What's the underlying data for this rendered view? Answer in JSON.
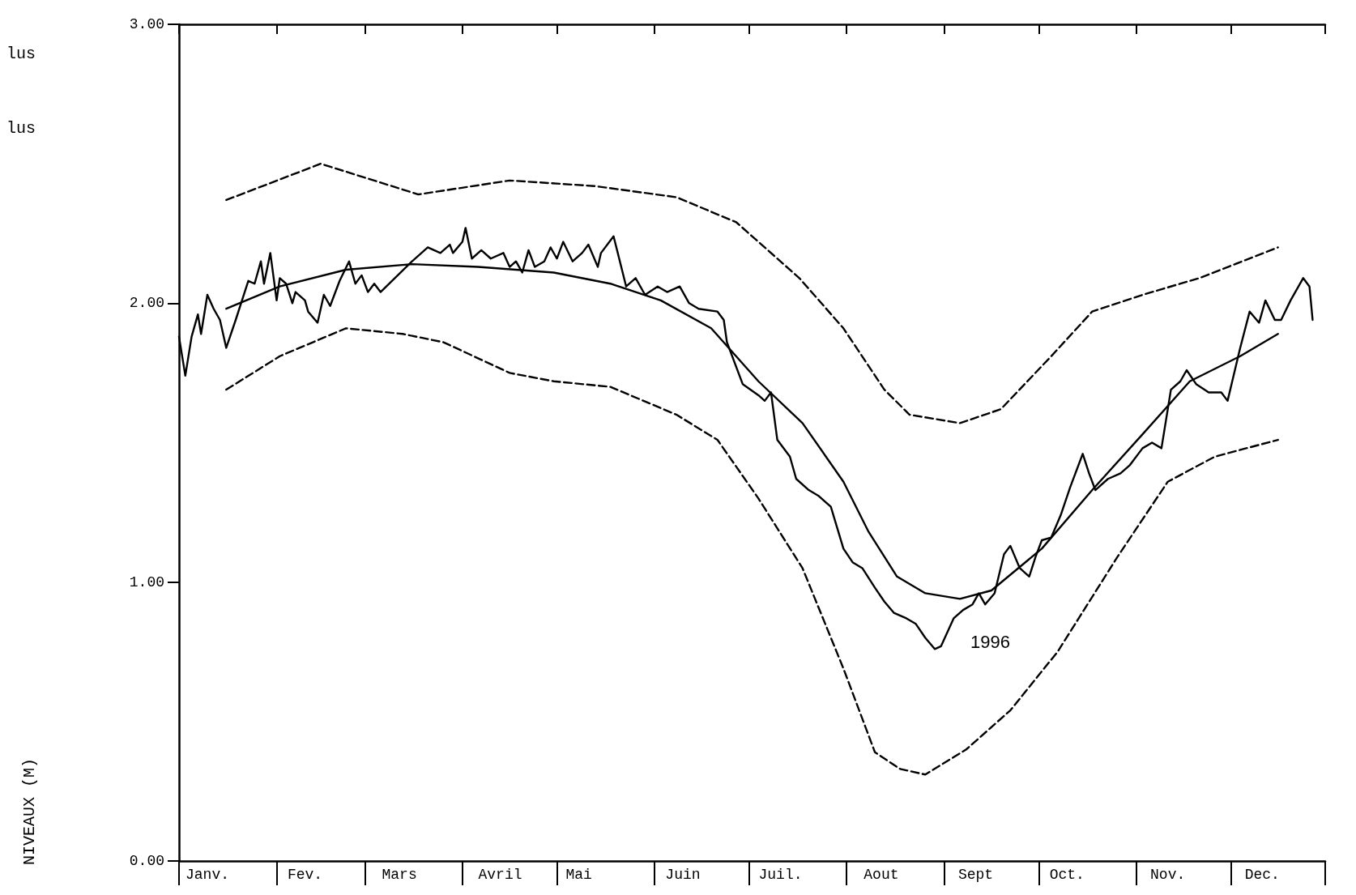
{
  "chart_data": {
    "type": "line",
    "xlim": [
      "--01-01",
      "--12-31"
    ],
    "ylim": [
      0,
      3
    ],
    "xticks": [
      {
        "value": "--01-01",
        "label": null
      },
      {
        "value": "--01-10",
        "label": "Janv."
      },
      {
        "value": "--02-01",
        "label": null
      },
      {
        "value": "--02-10",
        "label": "Fev."
      },
      {
        "value": "--03-01",
        "label": null
      },
      {
        "value": "--03-12",
        "label": "Mars"
      },
      {
        "value": "--04-01",
        "label": null
      },
      {
        "value": "--04-13",
        "label": "Avril"
      },
      {
        "value": "--05-01",
        "label": null
      },
      {
        "value": "--05-08",
        "label": "Mai"
      },
      {
        "value": "--06-01",
        "label": null
      },
      {
        "value": "--06-10",
        "label": "Juin"
      },
      {
        "value": "--07-01",
        "label": null
      },
      {
        "value": "--07-11",
        "label": "Juil."
      },
      {
        "value": "--08-01",
        "label": null
      },
      {
        "value": "--08-12",
        "label": "Aout"
      },
      {
        "value": "--09-01",
        "label": null
      },
      {
        "value": "--09-11",
        "label": "Sept"
      },
      {
        "value": "--10-01",
        "label": null
      },
      {
        "value": "--10-10",
        "label": "Oct."
      },
      {
        "value": "--11-01",
        "label": null
      },
      {
        "value": "--11-11",
        "label": "Nov."
      },
      {
        "value": "--12-01",
        "label": null
      },
      {
        "value": "--12-11",
        "label": "Dec."
      },
      {
        "value": "--12-31",
        "label": null
      }
    ],
    "yticks": [
      {
        "value": 0,
        "label": "0.00"
      },
      {
        "value": 1,
        "label": "1.00"
      },
      {
        "value": 2,
        "label": "2.00"
      },
      {
        "value": 3,
        "label": "3.00"
      }
    ],
    "grid": false,
    "marker": "none",
    "annotations": [
      "lus",
      "lus",
      "1996",
      "NIVEAUX (M)"
    ],
    "series": [
      {
        "color": "#000000",
        "line_style": "dashed",
        "x": [
          "--01-16",
          "--02-15",
          "--03-18",
          "--04-16",
          "--05-13",
          "--06-08",
          "--06-27",
          "--07-17",
          "--07-31",
          "--08-13",
          "--08-21",
          "--09-06",
          "--09-19",
          "--10-05",
          "--10-18",
          "--11-03",
          "--11-21",
          "--12-16"
        ],
        "values": [
          2.37,
          2.5,
          2.39,
          2.44,
          2.42,
          2.38,
          2.29,
          2.09,
          1.91,
          1.69,
          1.6,
          1.57,
          1.62,
          1.81,
          1.97,
          2.03,
          2.09,
          2.2
        ]
      },
      {
        "color": "#000000",
        "line_style": "dashed",
        "x": [
          "--01-16",
          "--02-02",
          "--02-23",
          "--03-13",
          "--03-26",
          "--04-16",
          "--04-30",
          "--05-18",
          "--06-08",
          "--06-21",
          "--07-04",
          "--07-18",
          "--07-31",
          "--08-10",
          "--08-18",
          "--08-26",
          "--09-08",
          "--09-22",
          "--10-07",
          "--10-26",
          "--11-11",
          "--11-26",
          "--12-16"
        ],
        "values": [
          1.69,
          1.81,
          1.91,
          1.89,
          1.86,
          1.75,
          1.72,
          1.7,
          1.6,
          1.51,
          1.3,
          1.05,
          0.69,
          0.39,
          0.33,
          0.31,
          0.4,
          0.54,
          0.75,
          1.09,
          1.36,
          1.45,
          1.51
        ]
      },
      {
        "color": "#000000",
        "line_style": "solid",
        "x": [
          "--01-16",
          "--02-02",
          "--02-23",
          "--03-16",
          "--04-06",
          "--04-30",
          "--05-18",
          "--06-03",
          "--06-19",
          "--07-04",
          "--07-18",
          "--07-31",
          "--08-08",
          "--08-17",
          "--08-26",
          "--09-06",
          "--09-16",
          "--10-02",
          "--10-18",
          "--11-03",
          "--11-18",
          "--12-04",
          "--12-16"
        ],
        "values": [
          1.98,
          2.06,
          2.12,
          2.14,
          2.13,
          2.11,
          2.07,
          2.01,
          1.91,
          1.72,
          1.57,
          1.36,
          1.18,
          1.02,
          0.96,
          0.94,
          0.97,
          1.12,
          1.33,
          1.53,
          1.72,
          1.81,
          1.89
        ]
      },
      {
        "color": "#000000",
        "line_style": "solid",
        "x": [
          "--01-01",
          "--01-03",
          "--01-05",
          "--01-07",
          "--01-08",
          "--01-10",
          "--01-12",
          "--01-14",
          "--01-16",
          "--01-19",
          "--01-23",
          "--01-25",
          "--01-27",
          "--01-28",
          "--01-30",
          "--02-01",
          "--02-02",
          "--02-04",
          "--02-06",
          "--02-07",
          "--02-10",
          "--02-11",
          "--02-14",
          "--02-16",
          "--02-18",
          "--02-21",
          "--02-24",
          "--02-26",
          "--02-28",
          "--03-02",
          "--03-04",
          "--03-06",
          "--03-16",
          "--03-21",
          "--03-25",
          "--03-28",
          "--03-29",
          "--04-01",
          "--04-02",
          "--04-04",
          "--04-07",
          "--04-10",
          "--04-14",
          "--04-16",
          "--04-18",
          "--04-20",
          "--04-22",
          "--04-24",
          "--04-27",
          "--04-29",
          "--05-01",
          "--05-03",
          "--05-06",
          "--05-09",
          "--05-11",
          "--05-14",
          "--05-15",
          "--05-19",
          "--05-23",
          "--05-26",
          "--05-29",
          "--06-02",
          "--06-05",
          "--06-09",
          "--06-12",
          "--06-15",
          "--06-21",
          "--06-23",
          "--06-24",
          "--06-29",
          "--07-04",
          "--07-06",
          "--07-08",
          "--07-10",
          "--07-14",
          "--07-16",
          "--07-20",
          "--07-23",
          "--07-27",
          "--07-31",
          "--08-03",
          "--08-06",
          "--08-10",
          "--08-13",
          "--08-16",
          "--08-20",
          "--08-23",
          "--08-26",
          "--08-29",
          "--08-31",
          "--09-04",
          "--09-07",
          "--09-10",
          "--09-12",
          "--09-14",
          "--09-17",
          "--09-20",
          "--09-22",
          "--09-25",
          "--09-28",
          "--09-30",
          "--10-02",
          "--10-05",
          "--10-08",
          "--10-11",
          "--10-15",
          "--10-17",
          "--10-19",
          "--10-23",
          "--10-27",
          "--10-30",
          "--11-03",
          "--11-06",
          "--11-09",
          "--11-12",
          "--11-15",
          "--11-17",
          "--11-20",
          "--11-24",
          "--11-28",
          "--11-30",
          "--12-04",
          "--12-07",
          "--12-10",
          "--12-12",
          "--12-15",
          "--12-17",
          "--12-20",
          "--12-24",
          "--12-26",
          "--12-27"
        ],
        "values": [
          1.88,
          1.74,
          1.88,
          1.96,
          1.89,
          2.03,
          1.98,
          1.94,
          1.84,
          1.94,
          2.08,
          2.07,
          2.15,
          2.07,
          2.18,
          2.01,
          2.09,
          2.07,
          2.0,
          2.04,
          2.01,
          1.97,
          1.93,
          2.03,
          1.99,
          2.08,
          2.15,
          2.07,
          2.1,
          2.04,
          2.07,
          2.04,
          2.15,
          2.2,
          2.18,
          2.21,
          2.18,
          2.22,
          2.27,
          2.16,
          2.19,
          2.16,
          2.18,
          2.13,
          2.15,
          2.11,
          2.19,
          2.13,
          2.15,
          2.2,
          2.16,
          2.22,
          2.15,
          2.18,
          2.21,
          2.13,
          2.18,
          2.24,
          2.06,
          2.09,
          2.03,
          2.06,
          2.04,
          2.06,
          2.0,
          1.98,
          1.97,
          1.94,
          1.86,
          1.71,
          1.67,
          1.65,
          1.68,
          1.51,
          1.45,
          1.37,
          1.33,
          1.31,
          1.27,
          1.12,
          1.07,
          1.05,
          0.98,
          0.93,
          0.89,
          0.87,
          0.85,
          0.8,
          0.76,
          0.77,
          0.87,
          0.9,
          0.92,
          0.96,
          0.92,
          0.96,
          1.1,
          1.13,
          1.05,
          1.02,
          1.09,
          1.15,
          1.16,
          1.24,
          1.34,
          1.46,
          1.39,
          1.33,
          1.37,
          1.39,
          1.42,
          1.48,
          1.5,
          1.48,
          1.69,
          1.72,
          1.76,
          1.71,
          1.68,
          1.68,
          1.65,
          1.84,
          1.97,
          1.93,
          2.01,
          1.94,
          1.94,
          2.01,
          2.09,
          2.06,
          1.94
        ]
      }
    ]
  }
}
